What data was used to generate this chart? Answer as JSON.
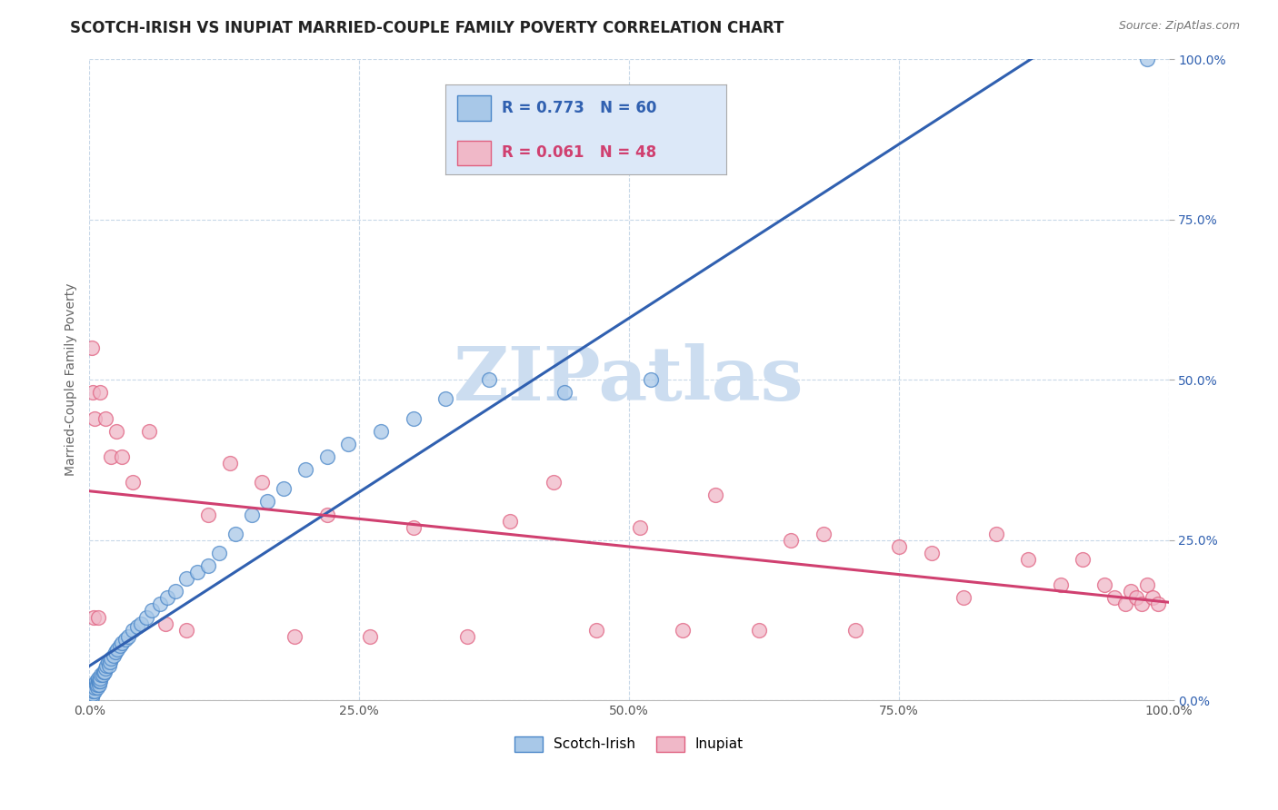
{
  "title": "SCOTCH-IRISH VS INUPIAT MARRIED-COUPLE FAMILY POVERTY CORRELATION CHART",
  "source_text": "Source: ZipAtlas.com",
  "ylabel": "Married-Couple Family Poverty",
  "xmin": 0.0,
  "xmax": 1.0,
  "ymin": 0.0,
  "ymax": 1.0,
  "tick_vals": [
    0.0,
    0.25,
    0.5,
    0.75,
    1.0
  ],
  "tick_labels": [
    "0.0%",
    "25.0%",
    "50.0%",
    "75.0%",
    "100.0%"
  ],
  "scotch_irish_color": "#a8c8e8",
  "inupiat_color": "#f0b8c8",
  "scotch_irish_edge_color": "#4a86c8",
  "inupiat_edge_color": "#e06080",
  "scotch_irish_line_color": "#3060b0",
  "inupiat_line_color": "#d04070",
  "right_label_color": "#3060b0",
  "scotch_irish_R": 0.773,
  "scotch_irish_N": 60,
  "inupiat_R": 0.061,
  "inupiat_N": 48,
  "watermark_color": "#ccddf0",
  "legend_box_color": "#dce8f8",
  "background_color": "#ffffff",
  "grid_color": "#c8d8e8",
  "scotch_irish_x": [
    0.002,
    0.003,
    0.003,
    0.004,
    0.004,
    0.005,
    0.005,
    0.006,
    0.006,
    0.007,
    0.007,
    0.008,
    0.008,
    0.009,
    0.009,
    0.01,
    0.01,
    0.011,
    0.012,
    0.013,
    0.014,
    0.015,
    0.016,
    0.017,
    0.018,
    0.019,
    0.02,
    0.022,
    0.024,
    0.026,
    0.028,
    0.03,
    0.033,
    0.036,
    0.04,
    0.044,
    0.048,
    0.053,
    0.058,
    0.065,
    0.072,
    0.08,
    0.09,
    0.1,
    0.11,
    0.12,
    0.135,
    0.15,
    0.165,
    0.18,
    0.2,
    0.22,
    0.24,
    0.27,
    0.3,
    0.33,
    0.37,
    0.44,
    0.52,
    0.98
  ],
  "scotch_irish_y": [
    0.005,
    0.01,
    0.015,
    0.02,
    0.025,
    0.015,
    0.02,
    0.025,
    0.03,
    0.02,
    0.025,
    0.03,
    0.035,
    0.025,
    0.03,
    0.03,
    0.035,
    0.04,
    0.04,
    0.045,
    0.045,
    0.05,
    0.055,
    0.06,
    0.055,
    0.06,
    0.065,
    0.07,
    0.075,
    0.08,
    0.085,
    0.09,
    0.095,
    0.1,
    0.11,
    0.115,
    0.12,
    0.13,
    0.14,
    0.15,
    0.16,
    0.17,
    0.19,
    0.2,
    0.21,
    0.23,
    0.26,
    0.29,
    0.31,
    0.33,
    0.36,
    0.38,
    0.4,
    0.42,
    0.44,
    0.47,
    0.5,
    0.48,
    0.5,
    1.0
  ],
  "inupiat_x": [
    0.002,
    0.003,
    0.004,
    0.005,
    0.008,
    0.01,
    0.015,
    0.02,
    0.025,
    0.03,
    0.04,
    0.055,
    0.07,
    0.09,
    0.11,
    0.13,
    0.16,
    0.19,
    0.22,
    0.26,
    0.3,
    0.35,
    0.39,
    0.43,
    0.47,
    0.51,
    0.55,
    0.58,
    0.62,
    0.65,
    0.68,
    0.71,
    0.75,
    0.78,
    0.81,
    0.84,
    0.87,
    0.9,
    0.92,
    0.94,
    0.95,
    0.96,
    0.965,
    0.97,
    0.975,
    0.98,
    0.985,
    0.99
  ],
  "inupiat_y": [
    0.55,
    0.48,
    0.13,
    0.44,
    0.13,
    0.48,
    0.44,
    0.38,
    0.42,
    0.38,
    0.34,
    0.42,
    0.12,
    0.11,
    0.29,
    0.37,
    0.34,
    0.1,
    0.29,
    0.1,
    0.27,
    0.1,
    0.28,
    0.34,
    0.11,
    0.27,
    0.11,
    0.32,
    0.11,
    0.25,
    0.26,
    0.11,
    0.24,
    0.23,
    0.16,
    0.26,
    0.22,
    0.18,
    0.22,
    0.18,
    0.16,
    0.15,
    0.17,
    0.16,
    0.15,
    0.18,
    0.16,
    0.15
  ]
}
